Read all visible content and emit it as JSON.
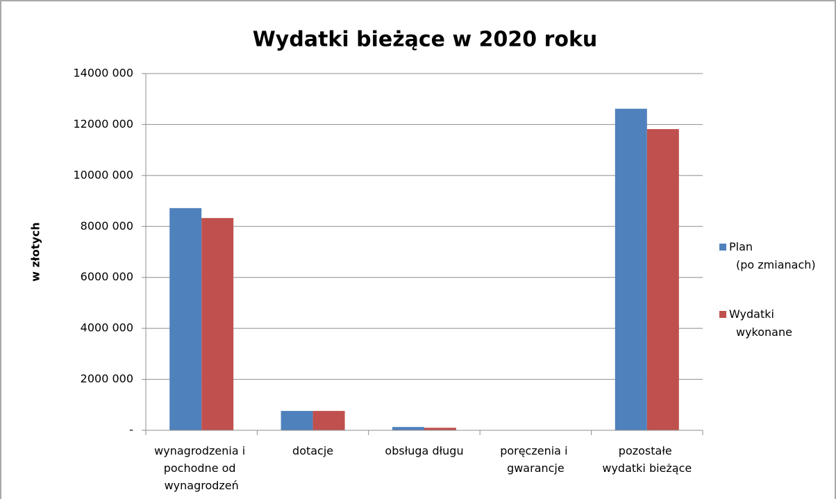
{
  "chart_data": {
    "type": "bar",
    "title": "Wydatki bieżące w 2020 roku",
    "y_label": "w złotych",
    "categories": [
      "wynagrodzenia i pochodne od wynagrodzeń",
      "dotacje",
      "obsługa długu",
      "poręczenia i gwarancje",
      "pozostałe wydatki bieżące"
    ],
    "series": [
      {
        "name": "Plan (po zmianach)",
        "color": "#4f81bd",
        "values": [
          8720000,
          760000,
          130000,
          0,
          12620000
        ]
      },
      {
        "name": "Wydatki wykonane",
        "color": "#c0504d",
        "values": [
          8330000,
          760000,
          100000,
          0,
          11820000
        ]
      }
    ],
    "ylim": [
      0,
      14000000
    ],
    "yticks": [
      {
        "value": 0,
        "label": "-"
      },
      {
        "value": 2000000,
        "label": "2000 000"
      },
      {
        "value": 4000000,
        "label": "4000 000"
      },
      {
        "value": 6000000,
        "label": "6000 000"
      },
      {
        "value": 8000000,
        "label": "8000 000"
      },
      {
        "value": 10000000,
        "label": "10000 000"
      },
      {
        "value": 12000000,
        "label": "12000 000"
      },
      {
        "value": 14000000,
        "label": "14000 000"
      }
    ],
    "grid": true,
    "legend": "right"
  }
}
